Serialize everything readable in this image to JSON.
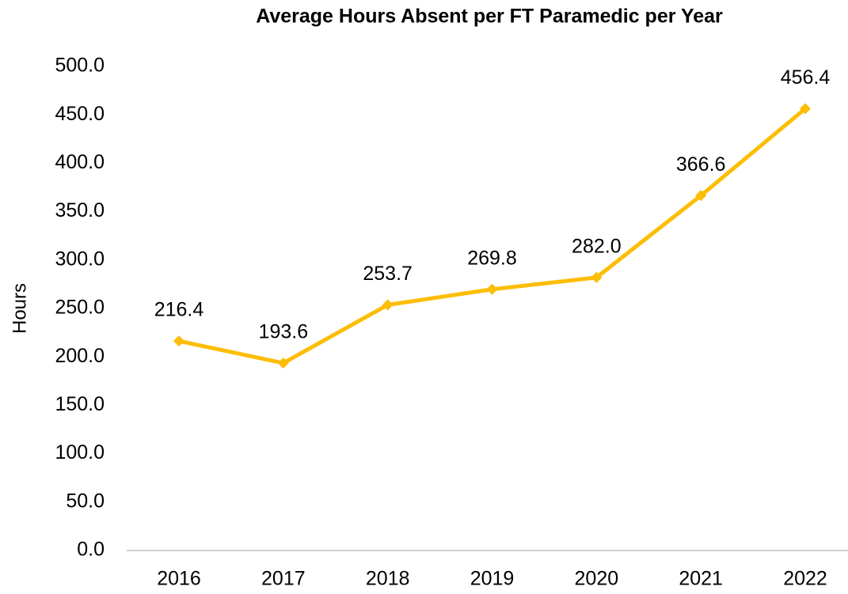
{
  "chart_data": {
    "type": "line",
    "title": "Average Hours Absent per FT Paramedic per Year",
    "y_label": "Hours",
    "categories": [
      "2016",
      "2017",
      "2018",
      "2019",
      "2020",
      "2021",
      "2022"
    ],
    "series": [
      {
        "name": "Average Hours Absent",
        "color": "#fcbd05",
        "values": [
          216.4,
          193.6,
          253.7,
          269.8,
          282.0,
          366.6,
          456.4
        ],
        "value_labels": [
          "216.4",
          "193.6",
          "253.7",
          "269.8",
          "282.0",
          "366.6",
          "456.4"
        ]
      }
    ],
    "ylim": [
      0,
      500
    ],
    "yticks": [
      {
        "value": 0,
        "label": "0.0"
      },
      {
        "value": 50,
        "label": "50.0"
      },
      {
        "value": 100,
        "label": "100.0"
      },
      {
        "value": 150,
        "label": "150.0"
      },
      {
        "value": 200,
        "label": "200.0"
      },
      {
        "value": 250,
        "label": "250.0"
      },
      {
        "value": 300,
        "label": "300.0"
      },
      {
        "value": 350,
        "label": "350.0"
      },
      {
        "value": 400,
        "label": "400.0"
      },
      {
        "value": 450,
        "label": "450.0"
      },
      {
        "value": 500,
        "label": "500.0"
      }
    ],
    "grid": false
  }
}
